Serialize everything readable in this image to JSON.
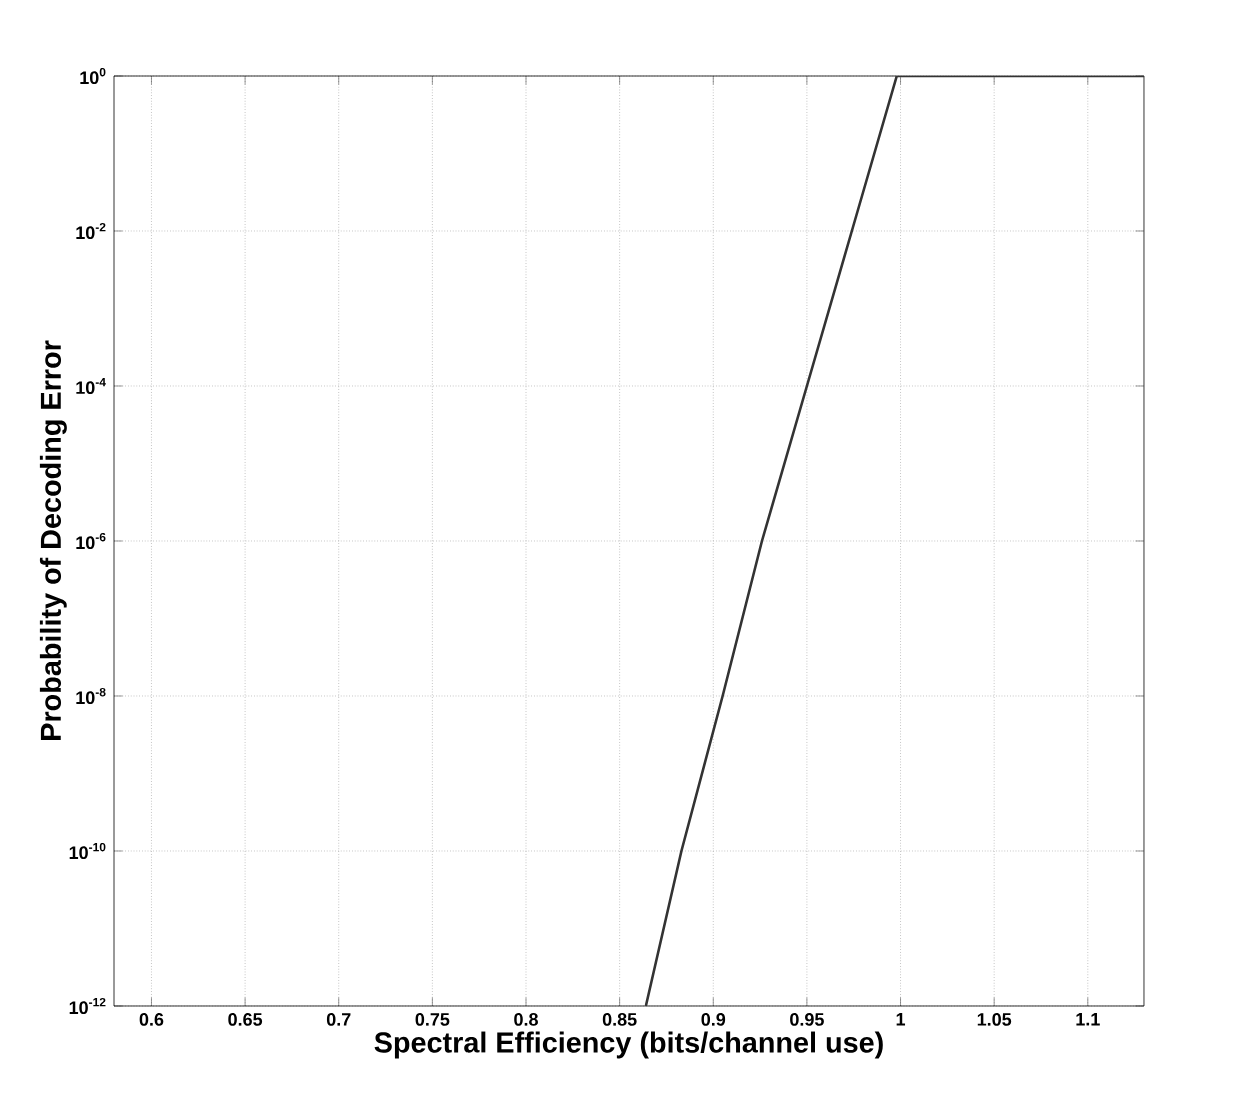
{
  "chart_data": {
    "type": "line",
    "xlabel": "Spectral Efficiency (bits/channel use)",
    "ylabel": "Probability of Decoding Error",
    "x": [
      0.864,
      0.883,
      0.905,
      0.926,
      0.95,
      0.974,
      0.998,
      1.13
    ],
    "series": [
      {
        "color": "#333333",
        "values": [
          1e-12,
          1e-10,
          1e-08,
          1e-06,
          0.0001,
          0.01,
          1,
          1
        ]
      }
    ],
    "log": "y",
    "grid": true,
    "line_style": "solid",
    "marker": "none",
    "xlim": [
      0.58,
      1.13
    ],
    "ylim": [
      1e-12,
      1
    ],
    "xticks": [
      0.6,
      0.65,
      0.7,
      0.75,
      0.8,
      0.85,
      0.9,
      0.95,
      1,
      1.05,
      1.1
    ],
    "yticks": [
      {
        "value": 1e-12,
        "label": "10$^{-12}$"
      },
      {
        "value": 1e-10,
        "label": "10$^{-10}$"
      },
      {
        "value": 1e-08,
        "label": "10$^{-8}$"
      },
      {
        "value": 1e-06,
        "label": "10$^{-6}$"
      },
      {
        "value": 0.0001,
        "label": "10$^{-4}$"
      },
      {
        "value": 0.01,
        "label": "10$^{-2}$"
      },
      {
        "value": 1,
        "label": "10$^{0}$"
      }
    ]
  }
}
